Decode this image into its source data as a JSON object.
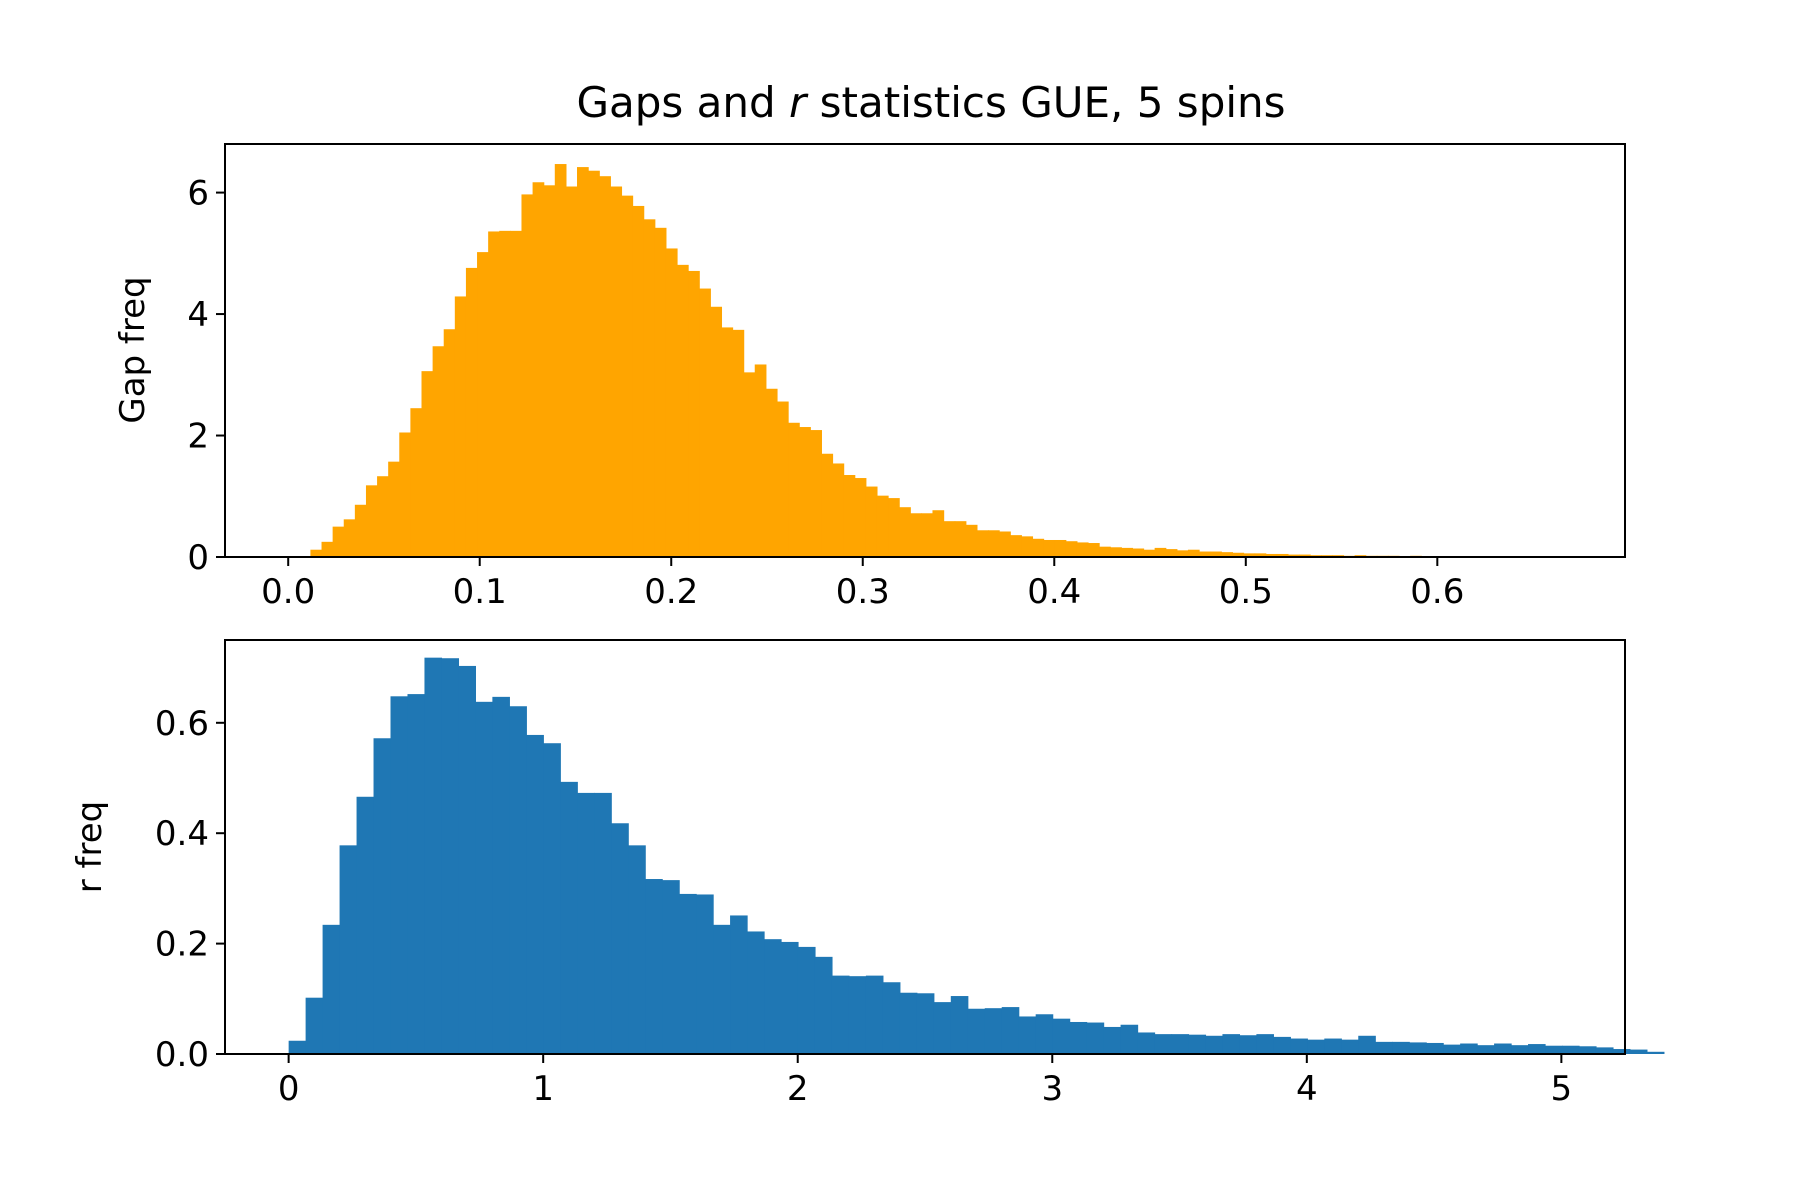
{
  "chart_data": {
    "title_prefix": "Gaps and ",
    "title_italic": "r",
    "title_suffix": " statistics GUE, 5 spins",
    "panels": [
      {
        "id": "gap",
        "type": "bar",
        "ylabel": "Gap freq",
        "xlabel": "",
        "color": "#ffa500",
        "xlim": [
          -0.033,
          0.698
        ],
        "ylim": [
          0,
          6.8
        ],
        "xticks": [
          0.0,
          0.1,
          0.2,
          0.3,
          0.4,
          0.5,
          0.6
        ],
        "xtick_labels": [
          "0.0",
          "0.1",
          "0.2",
          "0.3",
          "0.4",
          "0.5",
          "0.6"
        ],
        "yticks": [
          0,
          2,
          4,
          6
        ],
        "ytick_labels": [
          "0",
          "2",
          "4",
          "6"
        ],
        "bin_start": 0.0,
        "bin_width": 0.0058,
        "values": [
          0.0,
          0.0,
          0.12,
          0.25,
          0.5,
          0.62,
          0.86,
          1.18,
          1.33,
          1.57,
          2.05,
          2.45,
          3.06,
          3.47,
          3.75,
          4.29,
          4.76,
          5.02,
          5.36,
          5.37,
          5.37,
          5.97,
          6.17,
          6.12,
          6.47,
          6.1,
          6.42,
          6.36,
          6.27,
          6.1,
          5.95,
          5.78,
          5.56,
          5.42,
          5.08,
          4.81,
          4.71,
          4.42,
          4.12,
          3.78,
          3.74,
          3.04,
          3.17,
          2.77,
          2.56,
          2.21,
          2.14,
          2.09,
          1.7,
          1.54,
          1.35,
          1.3,
          1.16,
          1.01,
          0.97,
          0.82,
          0.72,
          0.72,
          0.77,
          0.59,
          0.59,
          0.53,
          0.44,
          0.44,
          0.42,
          0.36,
          0.34,
          0.3,
          0.28,
          0.28,
          0.26,
          0.24,
          0.23,
          0.17,
          0.16,
          0.15,
          0.14,
          0.12,
          0.15,
          0.13,
          0.11,
          0.12,
          0.09,
          0.09,
          0.08,
          0.07,
          0.06,
          0.06,
          0.05,
          0.05,
          0.04,
          0.04,
          0.03,
          0.03,
          0.03,
          0.02,
          0.03,
          0.02,
          0.02,
          0.02,
          0.01,
          0.02,
          0.01,
          0.01,
          0.01,
          0.01,
          0.01,
          0.01,
          0.01,
          0.0,
          0.0,
          0.0,
          0.0,
          0.0,
          0.0,
          0.0
        ]
      },
      {
        "id": "r",
        "type": "bar",
        "ylabel": "r freq",
        "xlabel": "",
        "color": "#1f77b4",
        "xlim": [
          -0.25,
          5.25
        ],
        "ylim": [
          0,
          0.75
        ],
        "xticks": [
          0,
          1,
          2,
          3,
          4,
          5
        ],
        "xtick_labels": [
          "0",
          "1",
          "2",
          "3",
          "4",
          "5"
        ],
        "yticks": [
          0.0,
          0.2,
          0.4,
          0.6
        ],
        "ytick_labels": [
          "0.0",
          "0.2",
          "0.4",
          "0.6"
        ],
        "bin_start": 0.0,
        "bin_width": 0.0667,
        "values": [
          0.024,
          0.102,
          0.234,
          0.378,
          0.466,
          0.572,
          0.648,
          0.652,
          0.718,
          0.717,
          0.703,
          0.638,
          0.647,
          0.63,
          0.578,
          0.563,
          0.493,
          0.473,
          0.473,
          0.418,
          0.378,
          0.317,
          0.315,
          0.29,
          0.289,
          0.234,
          0.251,
          0.222,
          0.208,
          0.203,
          0.194,
          0.176,
          0.142,
          0.141,
          0.142,
          0.13,
          0.111,
          0.11,
          0.094,
          0.105,
          0.082,
          0.083,
          0.085,
          0.068,
          0.072,
          0.064,
          0.058,
          0.057,
          0.049,
          0.053,
          0.039,
          0.036,
          0.036,
          0.035,
          0.033,
          0.036,
          0.034,
          0.036,
          0.031,
          0.028,
          0.026,
          0.028,
          0.026,
          0.033,
          0.022,
          0.022,
          0.021,
          0.02,
          0.017,
          0.019,
          0.016,
          0.019,
          0.016,
          0.018,
          0.015,
          0.015,
          0.014,
          0.012,
          0.009,
          0.008,
          0.004
        ]
      }
    ]
  }
}
